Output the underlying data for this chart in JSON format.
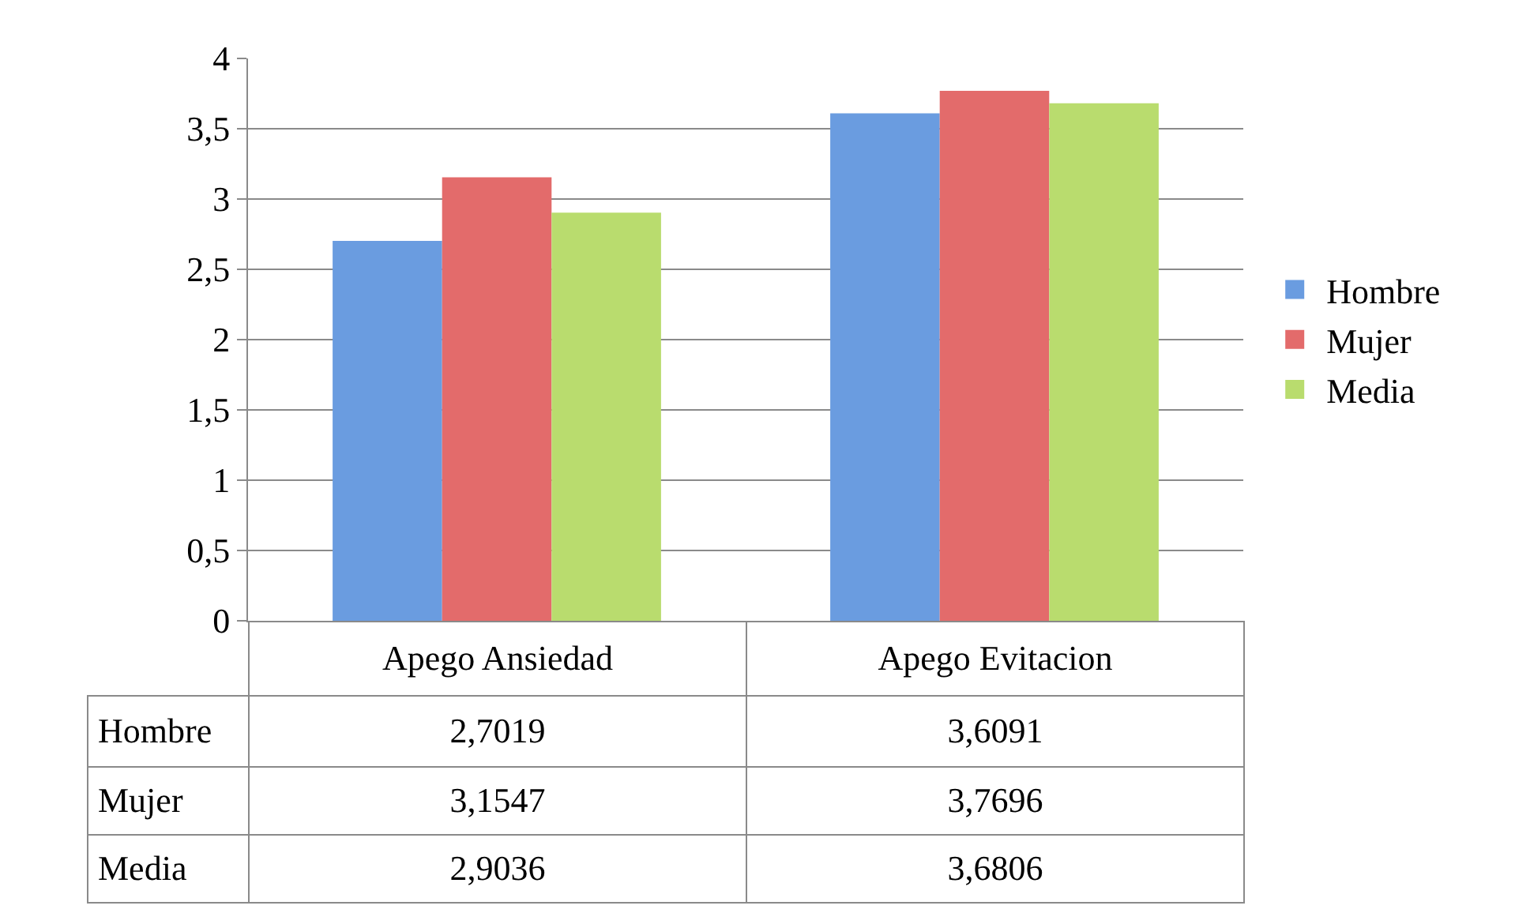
{
  "chart_data": {
    "type": "bar",
    "categories": [
      "Apego Ansiedad",
      "Apego Evitacion"
    ],
    "series": [
      {
        "name": "Hombre",
        "color": "#6a9ce0",
        "values": [
          2.7019,
          3.6091
        ],
        "value_labels": [
          "2,7019",
          "3,6091"
        ]
      },
      {
        "name": "Mujer",
        "color": "#e36b6b",
        "values": [
          3.1547,
          3.7696
        ],
        "value_labels": [
          "3,1547",
          "3,7696"
        ]
      },
      {
        "name": "Media",
        "color": "#b9dc6e",
        "values": [
          2.9036,
          3.6806
        ],
        "value_labels": [
          "2,9036",
          "3,6806"
        ]
      }
    ],
    "ylim": [
      0,
      4
    ],
    "yticks": [
      0,
      {
        "value": 0.5,
        "label": "0,5"
      },
      1,
      {
        "value": 1.5,
        "label": "1,5"
      },
      2,
      {
        "value": 2.5,
        "label": "2,5"
      },
      3,
      {
        "value": 3.5,
        "label": "3,5"
      },
      4
    ],
    "grid": "y",
    "legend": "right"
  }
}
